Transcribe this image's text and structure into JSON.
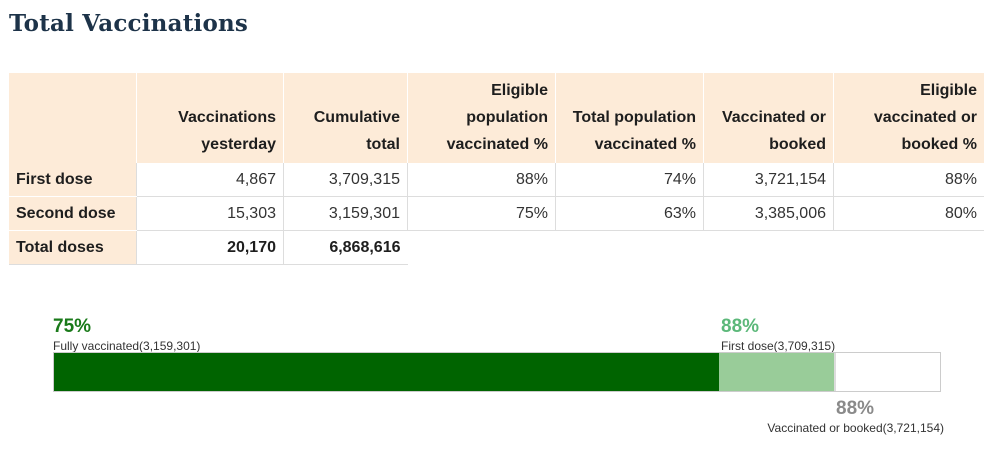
{
  "title": "Total Vaccinations",
  "table": {
    "headers": [
      "",
      "Vaccinations yesterday",
      "Cumulative total",
      "Eligible population vaccinated %",
      "Total population vaccinated %",
      "Vaccinated or booked",
      "Eligible vaccinated or booked %"
    ],
    "rows": [
      {
        "label": "First dose",
        "values": [
          "4,867",
          "3,709,315",
          "88%",
          "74%",
          "3,721,154",
          "88%"
        ]
      },
      {
        "label": "Second dose",
        "values": [
          "15,303",
          "3,159,301",
          "75%",
          "63%",
          "3,385,006",
          "80%"
        ]
      },
      {
        "label": "Total doses",
        "values": [
          "20,170",
          "6,868,616"
        ]
      }
    ]
  },
  "progress": {
    "fully": {
      "percent_label": "75%",
      "label": "Fully vaccinated(3,159,301)",
      "fraction": 0.75,
      "color": "#006400"
    },
    "first": {
      "percent_label": "88%",
      "label": "First dose(3,709,315)",
      "fraction": 0.88,
      "color": "#99cc99"
    },
    "booked": {
      "percent_label": "88%",
      "label": "Vaccinated or booked(3,721,154)",
      "fraction": 0.883,
      "color": "#dcdcdc"
    }
  }
}
